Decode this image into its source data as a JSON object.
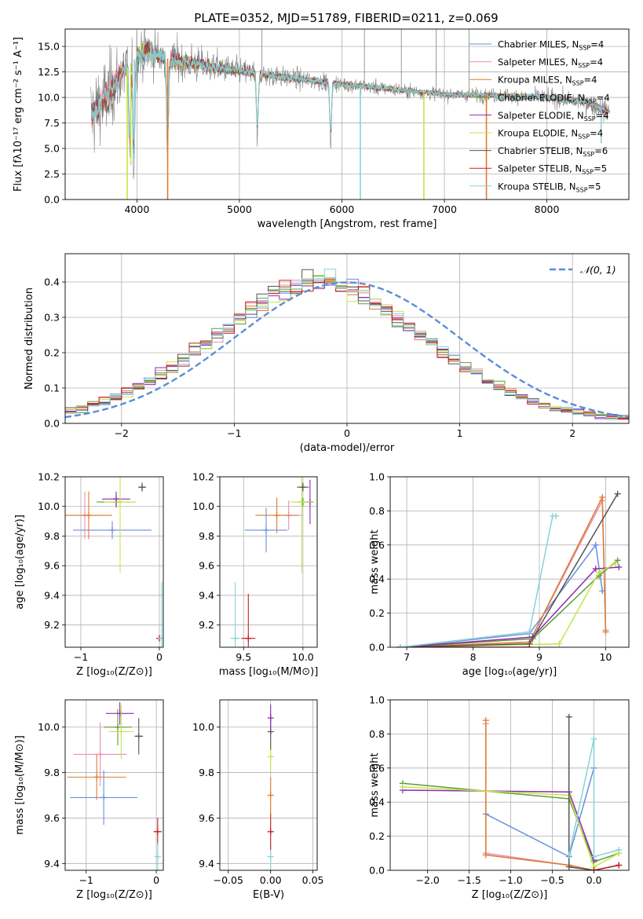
{
  "figure_title": "PLATE=0352, MJD=51789, FIBERID=0211, z=0.069",
  "colors": {
    "chabrier_miles": "#6a8fdb",
    "salpeter_miles": "#e88fb6",
    "kroupa_miles": "#e07b2a",
    "chabrier_elodie": "#5e9c3a",
    "salpeter_elodie": "#8e2bb0",
    "kroupa_elodie": "#c4e64a",
    "chabrier_stelib": "#555555",
    "salpeter_stelib": "#c81e1e",
    "kroupa_stelib": "#87d3d6",
    "data": "#808080",
    "gaussian": "#5b8ed6"
  },
  "legend_entries": [
    {
      "key": "chabrier_miles",
      "label": "Chabrier MILES, N",
      "sub": "SSP",
      "tail": "=4"
    },
    {
      "key": "salpeter_miles",
      "label": "Salpeter MILES, N",
      "sub": "SSP",
      "tail": "=4"
    },
    {
      "key": "kroupa_miles",
      "label": "Kroupa MILES, N",
      "sub": "SSP",
      "tail": "=4"
    },
    {
      "key": "chabrier_elodie",
      "label": "Chabrier ELODIE, N",
      "sub": "SSP",
      "tail": "=4"
    },
    {
      "key": "salpeter_elodie",
      "label": "Salpeter ELODIE, N",
      "sub": "SSP",
      "tail": "=4"
    },
    {
      "key": "kroupa_elodie",
      "label": "Kroupa ELODIE, N",
      "sub": "SSP",
      "tail": "=4"
    },
    {
      "key": "chabrier_stelib",
      "label": "Chabrier STELIB, N",
      "sub": "SSP",
      "tail": "=6"
    },
    {
      "key": "salpeter_stelib",
      "label": "Salpeter STELIB, N",
      "sub": "SSP",
      "tail": "=5"
    },
    {
      "key": "kroupa_stelib",
      "label": "Kroupa STELIB, N",
      "sub": "SSP",
      "tail": "=5"
    }
  ],
  "chart_data": [
    {
      "id": "spectrum",
      "type": "line",
      "xlabel": "wavelength [Angstrom, rest frame]",
      "ylabel": "Flux [fλ10⁻¹⁷ erg cm⁻² s⁻¹ A⁻¹]",
      "xlim": [
        3300,
        8800
      ],
      "ylim": [
        0,
        16.7
      ],
      "xticks": [
        4000,
        5000,
        6000,
        7000,
        8000
      ],
      "yticks": [
        0.0,
        2.5,
        5.0,
        7.5,
        10.0,
        12.5,
        15.0
      ],
      "continuum": [
        [
          3550,
          8.2
        ],
        [
          3700,
          10.0
        ],
        [
          3850,
          12.3
        ],
        [
          4000,
          14.0
        ],
        [
          4100,
          14.6
        ],
        [
          4300,
          13.8
        ],
        [
          4600,
          13.2
        ],
        [
          5000,
          12.6
        ],
        [
          5500,
          11.9
        ],
        [
          6000,
          11.3
        ],
        [
          6500,
          10.8
        ],
        [
          7000,
          10.3
        ],
        [
          7500,
          10.2
        ],
        [
          8000,
          10.0
        ],
        [
          8400,
          9.5
        ],
        [
          8600,
          8.6
        ]
      ],
      "noise": [
        [
          3550,
          3.0
        ],
        [
          3800,
          2.6
        ],
        [
          4200,
          1.6
        ],
        [
          5000,
          0.9
        ],
        [
          6000,
          0.55
        ],
        [
          7000,
          0.45
        ],
        [
          8000,
          0.55
        ],
        [
          8600,
          0.8
        ]
      ],
      "absorption": [
        [
          3930,
          9.0
        ],
        [
          3970,
          10.5
        ],
        [
          4300,
          9.5
        ],
        [
          5175,
          6.5
        ],
        [
          5890,
          6.0
        ]
      ],
      "model_dips": [
        [
          3940,
          3.4,
          "kroupa_elodie"
        ],
        [
          3975,
          4.0,
          "kroupa_stelib"
        ],
        [
          3905,
          0.0,
          "kroupa_elodie"
        ],
        [
          4300,
          0.0,
          "kroupa_miles"
        ],
        [
          6180,
          0.0,
          "kroupa_stelib"
        ],
        [
          6800,
          0.0,
          "kroupa_elodie"
        ],
        [
          7410,
          0.0,
          "kroupa_miles"
        ],
        [
          8530,
          5.5,
          "kroupa_stelib"
        ]
      ],
      "data_spikes": [
        [
          5220,
          16.7
        ],
        [
          6220,
          16.7
        ],
        [
          6580,
          16.7
        ],
        [
          6920,
          16.7
        ],
        [
          7240,
          16.7
        ]
      ]
    },
    {
      "id": "residuals",
      "type": "histogram",
      "xlabel": "(data-model)/error",
      "ylabel": "Normed distribution",
      "xlim": [
        -2.5,
        2.5
      ],
      "ylim": [
        0,
        0.48
      ],
      "xticks": [
        -2,
        -1,
        0,
        1,
        2
      ],
      "yticks": [
        0.0,
        0.1,
        0.2,
        0.3,
        0.4
      ],
      "bin_width": 0.1,
      "legend": "𝒩(0, 1)",
      "base": [
        0.035,
        0.042,
        0.052,
        0.062,
        0.075,
        0.088,
        0.104,
        0.121,
        0.14,
        0.16,
        0.18,
        0.202,
        0.225,
        0.248,
        0.272,
        0.295,
        0.318,
        0.34,
        0.36,
        0.375,
        0.388,
        0.396,
        0.398,
        0.396,
        0.388,
        0.375,
        0.36,
        0.34,
        0.318,
        0.295,
        0.272,
        0.248,
        0.225,
        0.202,
        0.18,
        0.16,
        0.14,
        0.121,
        0.104,
        0.088,
        0.075,
        0.062,
        0.052,
        0.042,
        0.035,
        0.03,
        0.026,
        0.022,
        0.019,
        0.017
      ]
    },
    {
      "id": "age_vs_Z",
      "type": "scatter",
      "xlabel": "Z [log₁₀(Z/Z⊙)]",
      "ylabel": "age  [log₁₀(age/yr)]",
      "xlim": [
        -1.2,
        0.05
      ],
      "ylim": [
        9.05,
        10.2
      ],
      "xticks": [
        -1,
        0
      ],
      "yticks": [
        9.2,
        9.4,
        9.6,
        9.8,
        10.0,
        10.2
      ],
      "points": [
        {
          "key": "chabrier_miles",
          "x": -0.6,
          "y": 9.84,
          "xerr": 0.5,
          "yerr": 0.06
        },
        {
          "key": "salpeter_miles",
          "x": -0.95,
          "y": 9.94,
          "xerr": 0.25,
          "yerr": 0.16
        },
        {
          "key": "kroupa_miles",
          "x": -0.9,
          "y": 9.94,
          "xerr": 0.3,
          "yerr": 0.16
        },
        {
          "key": "chabrier_elodie",
          "x": -0.55,
          "y": 10.03,
          "xerr": 0.25,
          "yerr": 0.04
        },
        {
          "key": "salpeter_elodie",
          "x": -0.55,
          "y": 10.05,
          "xerr": 0.18,
          "yerr": 0.05
        },
        {
          "key": "kroupa_elodie",
          "x": -0.5,
          "y": 10.03,
          "xerr": 0.2,
          "yerr": 0.48
        },
        {
          "key": "chabrier_stelib",
          "x": -0.22,
          "y": 10.13,
          "xerr": 0.05,
          "yerr": 0.03
        },
        {
          "key": "salpeter_stelib",
          "x": 0.0,
          "y": 9.11,
          "xerr": 0.02,
          "yerr": 0.02
        },
        {
          "key": "kroupa_stelib",
          "x": 0.03,
          "y": 9.11,
          "xerr": 0.05,
          "yerr": 0.38
        }
      ]
    },
    {
      "id": "age_vs_mass",
      "type": "scatter",
      "xlabel": "mass [log₁₀(M/M⊙)]",
      "ylabel": "",
      "xlim": [
        9.3,
        10.12
      ],
      "ylim": [
        9.05,
        10.2
      ],
      "xticks": [
        9.5,
        10.0
      ],
      "yticks": [
        9.2,
        9.4,
        9.6,
        9.8,
        10.0,
        10.2
      ],
      "points": [
        {
          "key": "chabrier_miles",
          "x": 9.69,
          "y": 9.84,
          "xerr": 0.18,
          "yerr": 0.15
        },
        {
          "key": "salpeter_miles",
          "x": 9.88,
          "y": 9.94,
          "xerr": 0.12,
          "yerr": 0.1
        },
        {
          "key": "kroupa_miles",
          "x": 9.78,
          "y": 9.94,
          "xerr": 0.18,
          "yerr": 0.12
        },
        {
          "key": "chabrier_elodie",
          "x": 10.0,
          "y": 10.03,
          "xerr": 0.08,
          "yerr": 0.03
        },
        {
          "key": "salpeter_elodie",
          "x": 10.06,
          "y": 10.03,
          "xerr": 0.03,
          "yerr": 0.15
        },
        {
          "key": "kroupa_elodie",
          "x": 9.99,
          "y": 10.03,
          "xerr": 0.1,
          "yerr": 0.48
        },
        {
          "key": "chabrier_stelib",
          "x": 10.0,
          "y": 10.13,
          "xerr": 0.05,
          "yerr": 0.03
        },
        {
          "key": "salpeter_stelib",
          "x": 9.54,
          "y": 9.11,
          "xerr": 0.06,
          "yerr": 0.3
        },
        {
          "key": "kroupa_stelib",
          "x": 9.43,
          "y": 9.11,
          "xerr": 0.04,
          "yerr": 0.38
        }
      ]
    },
    {
      "id": "weight_vs_age",
      "type": "line",
      "xlabel": "age  [log₁₀(age/yr)]",
      "ylabel": "mass weight",
      "xlim": [
        6.75,
        10.35
      ],
      "ylim": [
        0,
        1.0
      ],
      "xticks": [
        7,
        8,
        9,
        10
      ],
      "yticks": [
        0.0,
        0.2,
        0.4,
        0.6,
        0.8,
        1.0
      ],
      "series": [
        {
          "key": "chabrier_miles",
          "x": [
            6.9,
            8.85,
            9.85,
            9.95
          ],
          "y": [
            0.0,
            0.08,
            0.6,
            0.33
          ]
        },
        {
          "key": "salpeter_miles",
          "x": [
            6.9,
            8.85,
            9.95,
            10.0
          ],
          "y": [
            0.0,
            0.03,
            0.86,
            0.1
          ]
        },
        {
          "key": "kroupa_miles",
          "x": [
            6.9,
            8.85,
            9.95,
            10.0
          ],
          "y": [
            0.0,
            0.03,
            0.88,
            0.09
          ]
        },
        {
          "key": "chabrier_elodie",
          "x": [
            6.9,
            8.9,
            9.9,
            10.18
          ],
          "y": [
            0.0,
            0.05,
            0.42,
            0.51
          ]
        },
        {
          "key": "salpeter_elodie",
          "x": [
            6.9,
            8.9,
            9.85,
            10.2
          ],
          "y": [
            0.0,
            0.06,
            0.46,
            0.47
          ]
        },
        {
          "key": "kroupa_elodie",
          "x": [
            6.9,
            9.3,
            9.9,
            10.15
          ],
          "y": [
            0.0,
            0.02,
            0.44,
            0.49
          ]
        },
        {
          "key": "chabrier_stelib",
          "x": [
            6.9,
            8.85,
            10.18
          ],
          "y": [
            0.0,
            0.02,
            0.9
          ]
        },
        {
          "key": "salpeter_stelib",
          "x": [
            6.9,
            8.85
          ],
          "y": [
            0.0,
            0.0
          ]
        },
        {
          "key": "kroupa_stelib",
          "x": [
            6.9,
            8.85,
            9.2,
            9.25
          ],
          "y": [
            0.0,
            0.09,
            0.77,
            0.77
          ]
        }
      ]
    },
    {
      "id": "mass_vs_Z",
      "type": "scatter",
      "xlabel": "Z [log₁₀(Z/Z⊙)]",
      "ylabel": "mass [log₁₀(M/M⊙)]",
      "xlim": [
        -1.3,
        0.1
      ],
      "ylim": [
        9.37,
        10.12
      ],
      "xticks": [
        -1,
        0
      ],
      "yticks": [
        9.4,
        9.6,
        9.8,
        10.0
      ],
      "points": [
        {
          "key": "chabrier_miles",
          "x": -0.75,
          "y": 9.69,
          "xerr": 0.48,
          "yerr": 0.12
        },
        {
          "key": "salpeter_miles",
          "x": -0.8,
          "y": 9.88,
          "xerr": 0.38,
          "yerr": 0.14
        },
        {
          "key": "kroupa_miles",
          "x": -0.85,
          "y": 9.78,
          "xerr": 0.42,
          "yerr": 0.1
        },
        {
          "key": "chabrier_elodie",
          "x": -0.55,
          "y": 10.0,
          "xerr": 0.2,
          "yerr": 0.08
        },
        {
          "key": "salpeter_elodie",
          "x": -0.52,
          "y": 10.06,
          "xerr": 0.2,
          "yerr": 0.05
        },
        {
          "key": "kroupa_elodie",
          "x": -0.5,
          "y": 9.98,
          "xerr": 0.18,
          "yerr": 0.12
        },
        {
          "key": "chabrier_stelib",
          "x": -0.25,
          "y": 9.96,
          "xerr": 0.06,
          "yerr": 0.08
        },
        {
          "key": "salpeter_stelib",
          "x": 0.02,
          "y": 9.54,
          "xerr": 0.06,
          "yerr": 0.06
        },
        {
          "key": "kroupa_stelib",
          "x": 0.02,
          "y": 9.43,
          "xerr": 0.04,
          "yerr": 0.06
        }
      ]
    },
    {
      "id": "mass_vs_ebv",
      "type": "scatter",
      "xlabel": "E(B-V)",
      "ylabel": "",
      "xlim": [
        -0.06,
        0.055
      ],
      "ylim": [
        9.37,
        10.12
      ],
      "xticks": [
        -0.05,
        0.0,
        0.05
      ],
      "yticks": [
        9.4,
        9.6,
        9.8,
        10.0
      ],
      "points": [
        {
          "key": "kroupa_stelib",
          "x": 0.0,
          "y": 9.43,
          "xerr": 0.0,
          "yerr": 0.06
        },
        {
          "key": "salpeter_stelib",
          "x": 0.0,
          "y": 9.54,
          "xerr": 0.0,
          "yerr": 0.08
        },
        {
          "key": "kroupa_miles",
          "x": 0.0,
          "y": 9.7,
          "xerr": 0.0,
          "yerr": 0.08
        },
        {
          "key": "kroupa_elodie",
          "x": 0.0,
          "y": 9.87,
          "xerr": 0.0,
          "yerr": 0.06
        },
        {
          "key": "chabrier_stelib",
          "x": 0.0,
          "y": 9.98,
          "xerr": 0.0,
          "yerr": 0.08
        },
        {
          "key": "salpeter_elodie",
          "x": 0.0,
          "y": 10.04,
          "xerr": 0.0,
          "yerr": 0.06
        }
      ]
    },
    {
      "id": "weight_vs_Z",
      "type": "line",
      "xlabel": "Z [log₁₀(Z/Z⊙)]",
      "ylabel": "mass weight",
      "xlim": [
        -2.45,
        0.42
      ],
      "ylim": [
        0,
        1.0
      ],
      "xticks": [
        -2.0,
        -1.5,
        -1.0,
        -0.5,
        0.0
      ],
      "yticks": [
        0.0,
        0.2,
        0.4,
        0.6,
        0.8,
        1.0
      ],
      "series": [
        {
          "key": "chabrier_miles",
          "x": [
            -1.3,
            -0.3,
            0.0
          ],
          "y": [
            0.33,
            0.08,
            0.6
          ]
        },
        {
          "key": "salpeter_miles",
          "x": [
            -1.3,
            -1.3,
            -0.3,
            0.0
          ],
          "y": [
            0.86,
            0.1,
            0.03,
            0.0
          ]
        },
        {
          "key": "kroupa_miles",
          "x": [
            -1.3,
            -1.3,
            -0.3,
            0.0
          ],
          "y": [
            0.88,
            0.09,
            0.03,
            0.0
          ]
        },
        {
          "key": "chabrier_elodie",
          "x": [
            -2.3,
            -0.3,
            0.0,
            0.3
          ],
          "y": [
            0.51,
            0.42,
            0.05,
            0.1
          ]
        },
        {
          "key": "salpeter_elodie",
          "x": [
            -2.3,
            -0.3,
            0.0
          ],
          "y": [
            0.47,
            0.46,
            0.06
          ]
        },
        {
          "key": "kroupa_elodie",
          "x": [
            -2.3,
            -0.3,
            0.0,
            0.3
          ],
          "y": [
            0.49,
            0.44,
            0.02,
            0.1
          ]
        },
        {
          "key": "chabrier_stelib",
          "x": [
            -0.3,
            -0.3,
            0.0,
            0.3
          ],
          "y": [
            0.9,
            0.02,
            0.0,
            0.03
          ]
        },
        {
          "key": "salpeter_stelib",
          "x": [
            0.0,
            0.3
          ],
          "y": [
            0.0,
            0.03
          ]
        },
        {
          "key": "kroupa_stelib",
          "x": [
            -0.3,
            0.0,
            0.0,
            0.3
          ],
          "y": [
            0.09,
            0.77,
            0.08,
            0.12
          ]
        }
      ]
    }
  ]
}
